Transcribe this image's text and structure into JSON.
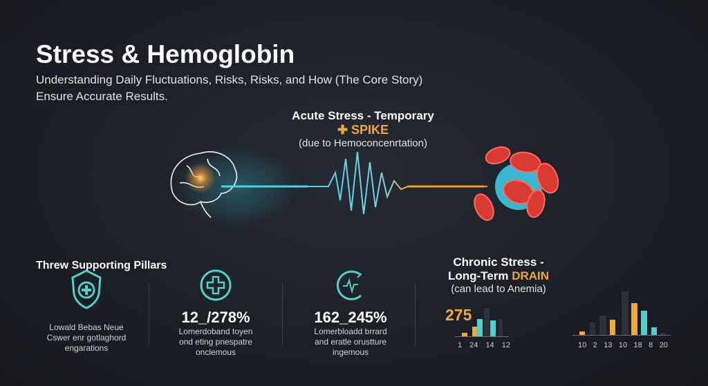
{
  "header": {
    "title": "Stress & Hemoglobin",
    "subtitle_line1": "Understanding Daily Fluctuations, Risks, Risks, and How (The Core Story)",
    "subtitle_line2": "Ensure Accurate Results."
  },
  "acute": {
    "line1": "Acute Stress - Temporary",
    "spike": "✚ SPIKE",
    "line3": "(due to Hemoconcenrtation)"
  },
  "pillars": {
    "title": "Threw Supporting Pillars",
    "items": [
      {
        "icon": "shield-plus-icon",
        "value": "",
        "desc": [
          "Lowald Bebas Neue",
          "Cswer enr gotlaghord",
          "engarations"
        ]
      },
      {
        "icon": "circle-plus-icon",
        "value": "12_/278%",
        "desc": [
          "Lomerdoband toyen",
          "ond eting pnespatre",
          "onclemous"
        ]
      },
      {
        "icon": "heartbeat-cycle-icon",
        "value": "162_245%",
        "desc": [
          "Lomerbloadd brrard",
          "and eratle orustture",
          "ingemous"
        ]
      }
    ]
  },
  "chronic": {
    "line1": "Chronic Stress -",
    "line2_prefix": "Long-Term ",
    "line2_accent": "DRAIN",
    "line3": "(can lead to Anemia)",
    "stat": "275"
  },
  "colors": {
    "background": "#1b1e25",
    "orange": "#f0a83c",
    "teal": "#4fd0d0",
    "muted": "#2c313a",
    "text": "#ffffff"
  },
  "mini_charts": [
    {
      "tick_labels": [
        "1",
        "24",
        "14",
        "12"
      ],
      "bar_colors": [
        "orange",
        "orange",
        "teal",
        "muted",
        "teal",
        "muted"
      ]
    },
    {
      "tick_labels": [
        "10",
        "2",
        "13",
        "10",
        "18",
        "8",
        "20"
      ],
      "bar_colors": [
        "orange",
        "muted",
        "muted",
        "orange",
        "muted",
        "orange",
        "teal",
        "teal",
        "muted"
      ]
    }
  ]
}
